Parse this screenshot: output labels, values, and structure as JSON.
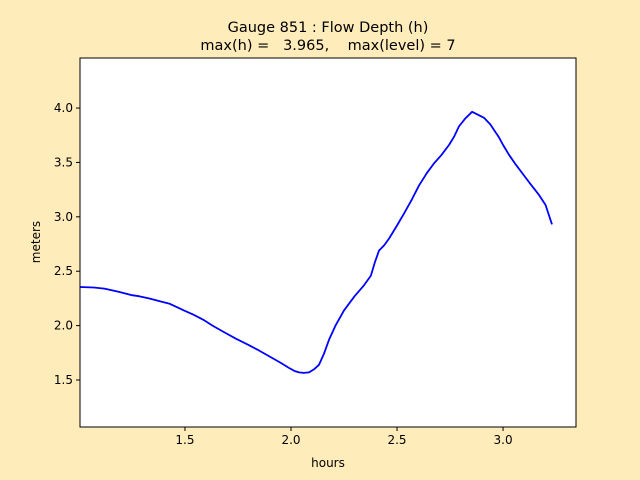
{
  "chart_data": {
    "type": "line",
    "title_line1": "Gauge 851 : Flow Depth (h)",
    "title_line2": "max(h) =   3.965,    max(level) = 7",
    "xlabel": "hours",
    "ylabel": "meters",
    "xlim": [
      1.005,
      3.344
    ],
    "ylim": [
      1.068,
      4.46
    ],
    "xticks": [
      "1.5",
      "2.0",
      "2.5",
      "3.0"
    ],
    "xtick_values": [
      1.5,
      2.0,
      2.5,
      3.0
    ],
    "yticks": [
      "1.5",
      "2.0",
      "2.5",
      "3.0",
      "3.5",
      "4.0"
    ],
    "ytick_values": [
      1.5,
      2.0,
      2.5,
      3.0,
      3.5,
      4.0
    ],
    "grid": false,
    "line_color": "#0000ff",
    "background_color": "#ffecbb",
    "series": [
      {
        "name": "h",
        "x": [
          1.005,
          1.07,
          1.12,
          1.189,
          1.25,
          1.283,
          1.33,
          1.377,
          1.43,
          1.495,
          1.54,
          1.59,
          1.63,
          1.684,
          1.74,
          1.802,
          1.85,
          1.896,
          1.95,
          1.991,
          2.02,
          2.038,
          2.06,
          2.085,
          2.11,
          2.132,
          2.155,
          2.179,
          2.21,
          2.25,
          2.3,
          2.344,
          2.377,
          2.395,
          2.415,
          2.44,
          2.462,
          2.5,
          2.533,
          2.57,
          2.604,
          2.64,
          2.674,
          2.71,
          2.745,
          2.77,
          2.792,
          2.82,
          2.854,
          2.88,
          2.91,
          2.94,
          2.981,
          3.0,
          3.028,
          3.06,
          3.099,
          3.13,
          3.17,
          3.2,
          3.231
        ],
        "y": [
          2.355,
          2.35,
          2.34,
          2.31,
          2.28,
          2.27,
          2.25,
          2.226,
          2.2,
          2.14,
          2.1,
          2.05,
          2.0,
          1.94,
          1.88,
          1.82,
          1.77,
          1.72,
          1.66,
          1.61,
          1.58,
          1.57,
          1.565,
          1.57,
          1.6,
          1.64,
          1.74,
          1.87,
          2.0,
          2.14,
          2.27,
          2.37,
          2.46,
          2.58,
          2.69,
          2.74,
          2.8,
          2.92,
          3.03,
          3.16,
          3.29,
          3.4,
          3.49,
          3.57,
          3.66,
          3.74,
          3.83,
          3.9,
          3.965,
          3.94,
          3.91,
          3.85,
          3.73,
          3.66,
          3.57,
          3.48,
          3.38,
          3.3,
          3.2,
          3.11,
          2.93
        ]
      }
    ]
  }
}
